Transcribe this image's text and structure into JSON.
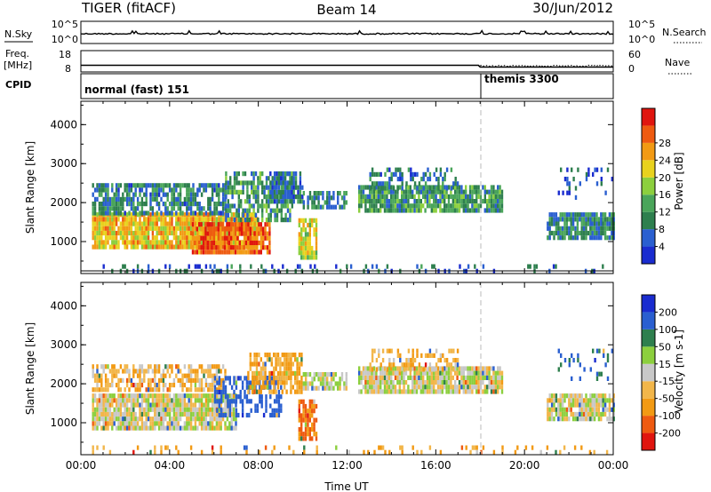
{
  "header": {
    "radar": "TIGER (fitACF)",
    "beam": "Beam 14",
    "date": "30/Jun/2012"
  },
  "strips": {
    "nsky": {
      "label": "N.Sky",
      "tick_top": "10^5",
      "tick_bottom": "10^0"
    },
    "nsearch": {
      "label": "N.Search",
      "tick_top": "10^5",
      "tick_bottom": "10^0"
    },
    "freq": {
      "label_line1": "Freq.",
      "label_line2": "[MHz]",
      "tick_top": "18",
      "tick_bottom": "8"
    },
    "nave": {
      "label": "Nave",
      "tick_top": "60",
      "tick_bottom": "0"
    },
    "cpid": {
      "label": "CPID",
      "segments": [
        {
          "name": "normal (fast) 151",
          "start_hour": 0
        },
        {
          "name": "themis 3300",
          "start_hour": 18
        }
      ]
    }
  },
  "chart_data": [
    {
      "type": "heatmap",
      "panel": "power",
      "ylabel": "Slant Range [km]",
      "ylim": [
        180,
        4600
      ],
      "yticks": [
        "1000",
        "2000",
        "3000",
        "4000"
      ],
      "xlim": [
        0,
        24
      ],
      "colorbar_label": "Power [dB]",
      "colorbar_ticks": [
        "4",
        "8",
        "12",
        "16",
        "20",
        "24",
        "28"
      ],
      "colorbar_range": [
        0,
        32
      ],
      "colors": [
        "#1a2ccf",
        "#2a5fd0",
        "#2e7f4e",
        "#4aa55a",
        "#8ccf3e",
        "#e8d21e",
        "#f29a14",
        "#ee5a10",
        "#e0150f"
      ],
      "regions": [
        {
          "x": [
            0.5,
            8.0
          ],
          "r": [
            850,
            1750
          ],
          "v": 21,
          "d": 0.92
        },
        {
          "x": [
            0.5,
            6.5
          ],
          "r": [
            1750,
            2500
          ],
          "v": 8,
          "d": 0.75
        },
        {
          "x": [
            5.0,
            8.5
          ],
          "r": [
            700,
            1500
          ],
          "v": 26,
          "d": 0.85
        },
        {
          "x": [
            6.5,
            9.5
          ],
          "r": [
            1600,
            2800
          ],
          "v": 10,
          "d": 0.6
        },
        {
          "x": [
            8.5,
            10.0
          ],
          "r": [
            2000,
            2800
          ],
          "v": 7,
          "d": 0.8
        },
        {
          "x": [
            10.0,
            12.0
          ],
          "r": [
            1900,
            2300
          ],
          "v": 9,
          "d": 0.7
        },
        {
          "x": [
            9.8,
            10.6
          ],
          "r": [
            600,
            1600
          ],
          "v": 18,
          "d": 0.75
        },
        {
          "x": [
            12.5,
            19.0
          ],
          "r": [
            1850,
            2450
          ],
          "v": 11,
          "d": 0.88
        },
        {
          "x": [
            13.0,
            17.0
          ],
          "r": [
            2400,
            2900
          ],
          "v": 8,
          "d": 0.45
        },
        {
          "x": [
            21.0,
            24.0
          ],
          "r": [
            1150,
            1750
          ],
          "v": 9,
          "d": 0.85
        },
        {
          "x": [
            21.5,
            24.0
          ],
          "r": [
            2100,
            2900
          ],
          "v": 5,
          "d": 0.22
        },
        {
          "x": [
            0.5,
            24.0
          ],
          "r": [
            200,
            420
          ],
          "v": 6,
          "d": 0.18
        }
      ]
    },
    {
      "type": "heatmap",
      "panel": "velocity",
      "ylabel": "Slant Range [km]",
      "ylim": [
        180,
        4600
      ],
      "yticks": [
        "1000",
        "2000",
        "3000",
        "4000"
      ],
      "xlim": [
        0,
        24
      ],
      "xlabel": "Time UT",
      "xticks": [
        "00:00",
        "04:00",
        "08:00",
        "12:00",
        "16:00",
        "20:00",
        "00:00"
      ],
      "colorbar_label": "Velocity [m s-1]",
      "colorbar_ticks": [
        "-200",
        "-100",
        "-50",
        "-15",
        "15",
        "50",
        "100",
        "200"
      ],
      "colors": [
        "#e0150f",
        "#ee5a10",
        "#f29a14",
        "#f2b64a",
        "#c8c8c8",
        "#8ccf3e",
        "#2e7f4e",
        "#2a5fd0",
        "#1a2ccf"
      ],
      "regions": [
        {
          "x": [
            0.5,
            7.0
          ],
          "r": [
            900,
            1750
          ],
          "v": 0,
          "d": 0.9
        },
        {
          "x": [
            0.5,
            6.5
          ],
          "r": [
            1800,
            2500
          ],
          "v": -40,
          "d": 0.6
        },
        {
          "x": [
            6.0,
            9.0
          ],
          "r": [
            1200,
            2200
          ],
          "v": 150,
          "d": 0.55
        },
        {
          "x": [
            7.5,
            10.0
          ],
          "r": [
            1800,
            2800
          ],
          "v": -60,
          "d": 0.65
        },
        {
          "x": [
            9.8,
            10.6
          ],
          "r": [
            600,
            1600
          ],
          "v": -120,
          "d": 0.7
        },
        {
          "x": [
            10.0,
            12.0
          ],
          "r": [
            1900,
            2300
          ],
          "v": 5,
          "d": 0.7
        },
        {
          "x": [
            12.5,
            19.0
          ],
          "r": [
            1850,
            2450
          ],
          "v": 2,
          "d": 0.88
        },
        {
          "x": [
            13.0,
            17.0
          ],
          "r": [
            2400,
            2900
          ],
          "v": -40,
          "d": 0.4
        },
        {
          "x": [
            21.0,
            24.0
          ],
          "r": [
            1150,
            1750
          ],
          "v": 0,
          "d": 0.85
        },
        {
          "x": [
            21.5,
            24.0
          ],
          "r": [
            2100,
            2900
          ],
          "v": 120,
          "d": 0.2
        },
        {
          "x": [
            0.5,
            24.0
          ],
          "r": [
            200,
            420
          ],
          "v": -60,
          "d": 0.15
        }
      ]
    }
  ]
}
